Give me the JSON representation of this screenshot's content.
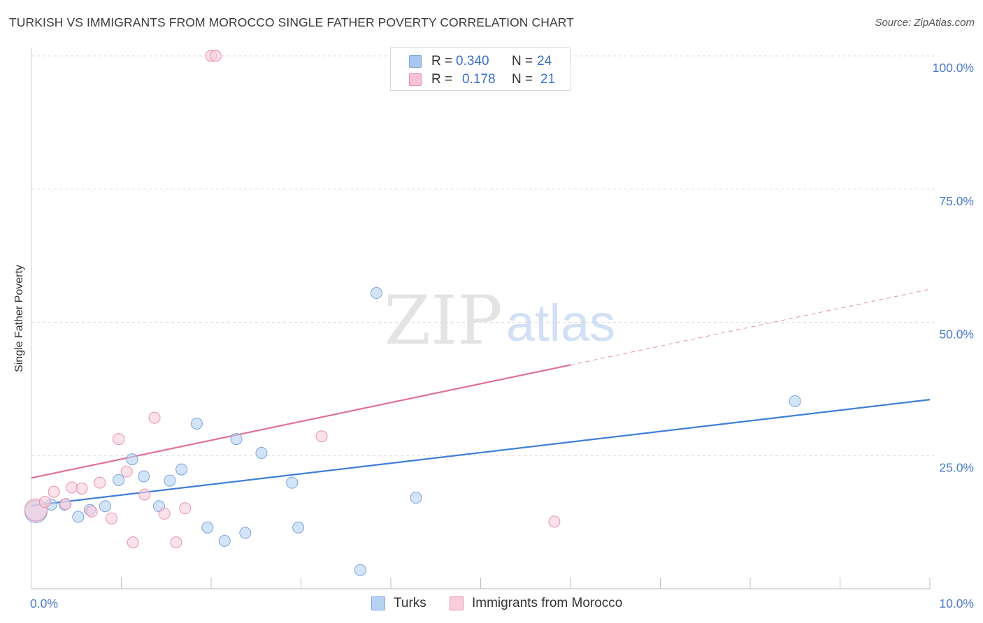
{
  "title": "TURKISH VS IMMIGRANTS FROM MOROCCO SINGLE FATHER POVERTY CORRELATION CHART",
  "source": "Source: ZipAtlas.com",
  "watermark": {
    "zip": "ZIP",
    "atlas": "atlas"
  },
  "legend": {
    "rows": [
      {
        "r_label": "R = ",
        "r_value": "0.340",
        "n_label": "N = ",
        "n_value": "24",
        "color": "#a9c6f0",
        "border": "#7aa3de"
      },
      {
        "r_label": "R = ",
        "r_value": "0.178",
        "n_label": "N = ",
        "n_value": "21",
        "color": "#f8c2d2",
        "border": "#e991ac"
      }
    ]
  },
  "bottom_legend": [
    {
      "label": "Turks",
      "color": "#b8d2f4",
      "border": "#7aa3de"
    },
    {
      "label": "Immigrants from Morocco",
      "color": "#f9cddb",
      "border": "#e991ac"
    }
  ],
  "chart_data": {
    "type": "scatter",
    "title": "TURKISH VS IMMIGRANTS FROM MOROCCO SINGLE FATHER POVERTY CORRELATION CHART",
    "xlabel": "",
    "ylabel": "Single Father Poverty",
    "xlim": [
      0,
      10
    ],
    "ylim": [
      0,
      100
    ],
    "x_tick_labels": [
      {
        "value": 0,
        "label": "0.0%"
      },
      {
        "value": 10,
        "label": "10.0%"
      }
    ],
    "y_tick_labels": [
      {
        "value": 25,
        "label": "25.0%"
      },
      {
        "value": 50,
        "label": "50.0%"
      },
      {
        "value": 75,
        "label": "75.0%"
      },
      {
        "value": 100,
        "label": "100.0%"
      }
    ],
    "series": [
      {
        "name": "Turks",
        "color": "#3f7fd8",
        "fill": "#b8d2f4",
        "stroke": "#7aa3de",
        "points": [
          {
            "x": 0.05,
            "y": 14.5,
            "big": true
          },
          {
            "x": 0.22,
            "y": 15.8
          },
          {
            "x": 0.37,
            "y": 15.8
          },
          {
            "x": 0.52,
            "y": 13.5
          },
          {
            "x": 0.65,
            "y": 14.8
          },
          {
            "x": 0.82,
            "y": 15.5
          },
          {
            "x": 0.97,
            "y": 20.4
          },
          {
            "x": 1.12,
            "y": 24.3
          },
          {
            "x": 1.25,
            "y": 21.1
          },
          {
            "x": 1.42,
            "y": 15.5
          },
          {
            "x": 1.54,
            "y": 20.3
          },
          {
            "x": 1.67,
            "y": 22.4
          },
          {
            "x": 1.84,
            "y": 31.0
          },
          {
            "x": 1.96,
            "y": 11.5
          },
          {
            "x": 2.15,
            "y": 9.0
          },
          {
            "x": 2.28,
            "y": 28.1
          },
          {
            "x": 2.38,
            "y": 10.5
          },
          {
            "x": 2.56,
            "y": 25.5
          },
          {
            "x": 2.9,
            "y": 19.9
          },
          {
            "x": 2.97,
            "y": 11.5
          },
          {
            "x": 3.66,
            "y": 3.5
          },
          {
            "x": 3.84,
            "y": 55.5
          },
          {
            "x": 4.28,
            "y": 17.1
          },
          {
            "x": 8.5,
            "y": 35.2
          }
        ],
        "trend": {
          "x1": 0,
          "y1": 15.6,
          "x2": 10,
          "y2": 35.5
        }
      },
      {
        "name": "Immigrants from Morocco",
        "color": "#e0709a",
        "fill": "#f9cddb",
        "stroke": "#e991ac",
        "points": [
          {
            "x": 0.05,
            "y": 14.8,
            "big": true
          },
          {
            "x": 0.15,
            "y": 16.3
          },
          {
            "x": 0.25,
            "y": 18.2
          },
          {
            "x": 0.38,
            "y": 15.9
          },
          {
            "x": 0.45,
            "y": 19.0
          },
          {
            "x": 0.56,
            "y": 18.8
          },
          {
            "x": 0.67,
            "y": 14.5
          },
          {
            "x": 0.76,
            "y": 19.9
          },
          {
            "x": 0.89,
            "y": 13.2
          },
          {
            "x": 0.97,
            "y": 28.1
          },
          {
            "x": 1.06,
            "y": 22.0
          },
          {
            "x": 1.13,
            "y": 8.7
          },
          {
            "x": 1.26,
            "y": 17.7
          },
          {
            "x": 1.37,
            "y": 32.1
          },
          {
            "x": 1.48,
            "y": 14.1
          },
          {
            "x": 1.61,
            "y": 8.7
          },
          {
            "x": 1.71,
            "y": 15.1
          },
          {
            "x": 2.0,
            "y": 100.0
          },
          {
            "x": 2.05,
            "y": 100.0
          },
          {
            "x": 3.23,
            "y": 28.6
          },
          {
            "x": 5.82,
            "y": 12.6
          }
        ],
        "trend": {
          "x1": 0,
          "y1": 20.8,
          "x2": 6.0,
          "y2": 42.0,
          "dash_to_x": 10,
          "dash_to_y": 56.2
        }
      }
    ]
  }
}
